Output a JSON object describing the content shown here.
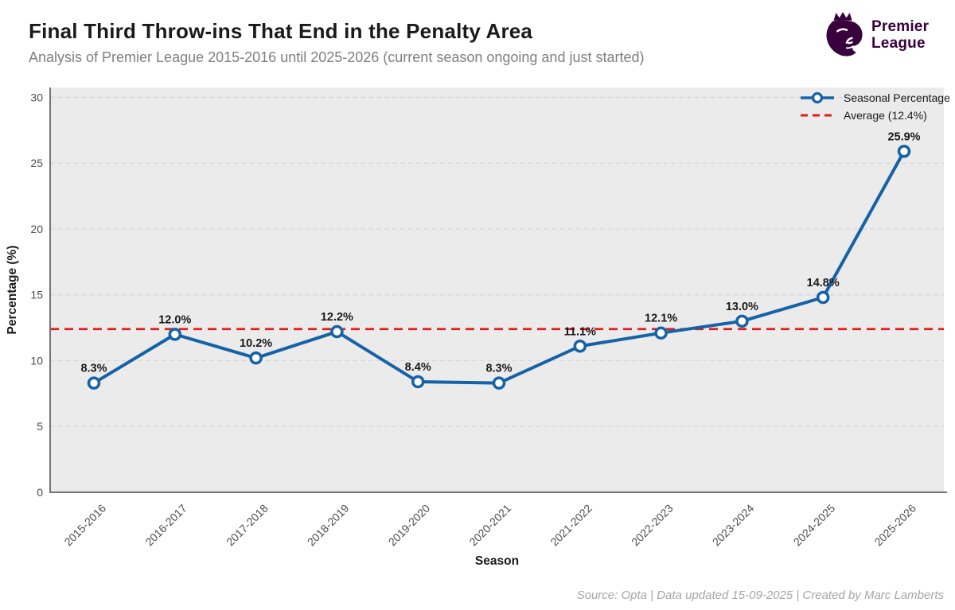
{
  "header": {
    "title": "Final Third Throw-ins That End in the Penalty Area",
    "subtitle": "Analysis of Premier League 2015-2016 until 2025-2026 (current season ongoing and just started)"
  },
  "logo": {
    "name_line1": "Premier",
    "name_line2": "League",
    "color": "#38003c"
  },
  "footer": {
    "credit": "Source: Opta | Data updated 15-09-2025 | Created by Marc Lamberts"
  },
  "chart_data": {
    "type": "line",
    "title": "Final Third Throw-ins That End in the Penalty Area",
    "subtitle": "Analysis of Premier League 2015-2016 until 2025-2026 (current season ongoing and just started)",
    "xlabel": "Season",
    "ylabel": "Percentage (%)",
    "categories": [
      "2015-2016",
      "2016-2017",
      "2017-2018",
      "2018-2019",
      "2019-2020",
      "2020-2021",
      "2021-2022",
      "2022-2023",
      "2023-2024",
      "2024-2025",
      "2025-2026"
    ],
    "series": [
      {
        "name": "Seasonal Percentage",
        "values": [
          8.3,
          12.0,
          10.2,
          12.2,
          8.4,
          8.3,
          11.1,
          12.1,
          13.0,
          14.8,
          25.9
        ]
      }
    ],
    "point_labels": [
      "8.3%",
      "12.0%",
      "10.2%",
      "12.2%",
      "8.4%",
      "8.3%",
      "11.1%",
      "12.1%",
      "13.0%",
      "14.8%",
      "25.9%"
    ],
    "average": 12.4,
    "average_label": "Average (12.4%)",
    "legend_position": "top-right",
    "grid": "horizontal-dashed",
    "ylim": [
      0,
      30.75
    ],
    "yticks": [
      0,
      5,
      10,
      15,
      20,
      25,
      30
    ],
    "colors": {
      "series": "#1562a7",
      "average": "#e11d1d",
      "marker_fill": "#ffffff",
      "plot_background": "#ebebeb",
      "gridline": "#d9d9d9",
      "spine": "#737373",
      "tick_label": "#4d4d4d",
      "point_label": "#1a1a1a"
    }
  }
}
